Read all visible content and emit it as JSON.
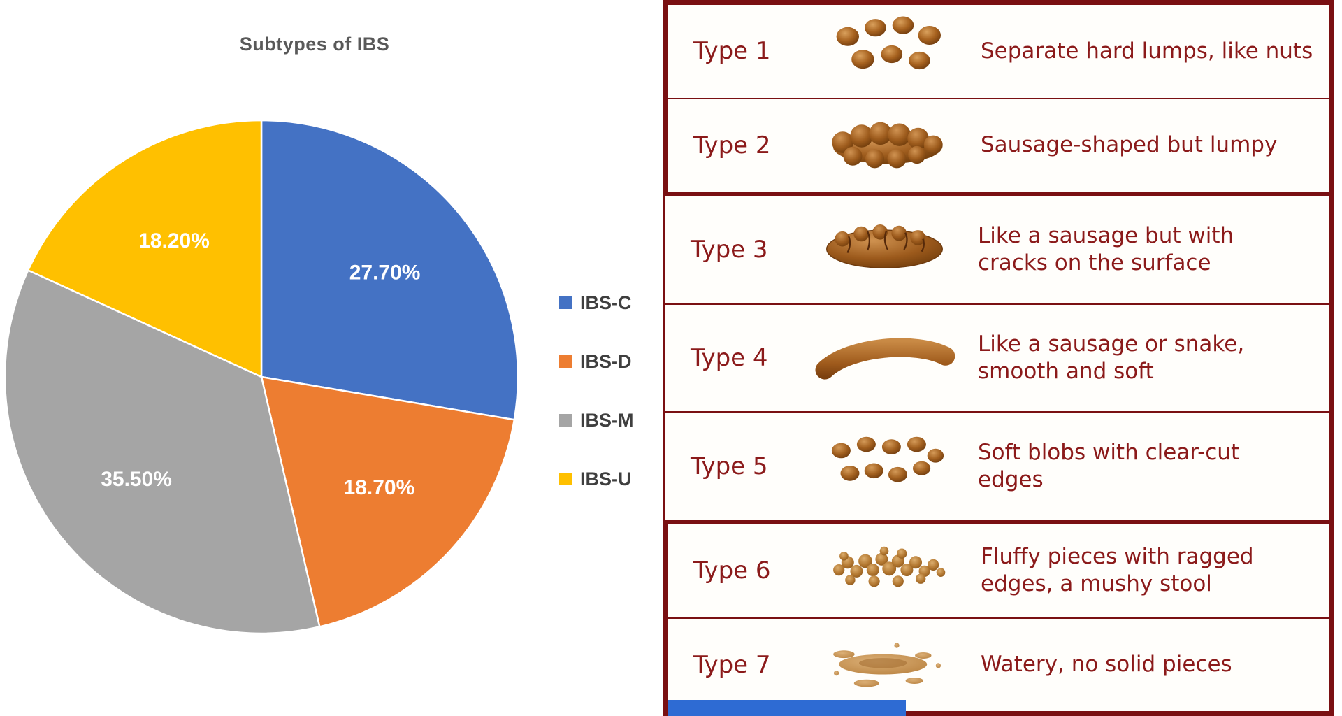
{
  "chart_data": {
    "type": "pie",
    "title": "Subtypes of IBS",
    "labels": [
      "IBS-C",
      "IBS-D",
      "IBS-M",
      "IBS-U"
    ],
    "values": [
      27.7,
      18.7,
      35.5,
      18.2
    ],
    "value_labels": [
      "27.70%",
      "18.70%",
      "35.50%",
      "18.20%"
    ],
    "colors": [
      "#4472C4",
      "#ED7D31",
      "#A5A5A5",
      "#FFC000"
    ],
    "legend_position": "right",
    "start_angle_deg": -90,
    "direction": "clockwise"
  },
  "stool_chart": {
    "text_color": "#8B1A1A",
    "border_color": "#7A1012",
    "rows": [
      {
        "type_label": "Type 1",
        "image": "stool-type-1",
        "description": "Separate hard lumps, like nuts"
      },
      {
        "type_label": "Type 2",
        "image": "stool-type-2",
        "description": "Sausage-shaped but lumpy"
      },
      {
        "type_label": "Type 3",
        "image": "stool-type-3",
        "description": "Like a sausage but with\ncracks on the surface"
      },
      {
        "type_label": "Type 4",
        "image": "stool-type-4",
        "description": "Like a sausage or snake,\nsmooth and soft"
      },
      {
        "type_label": "Type 5",
        "image": "stool-type-5",
        "description": "Soft blobs with clear-cut\nedges"
      },
      {
        "type_label": "Type 6",
        "image": "stool-type-6",
        "description": "Fluffy pieces with ragged\nedges, a mushy stool"
      },
      {
        "type_label": "Type 7",
        "image": "stool-type-7",
        "description": "Watery, no solid pieces"
      }
    ]
  },
  "footer_bar": {
    "color": "#2E6BD3"
  }
}
